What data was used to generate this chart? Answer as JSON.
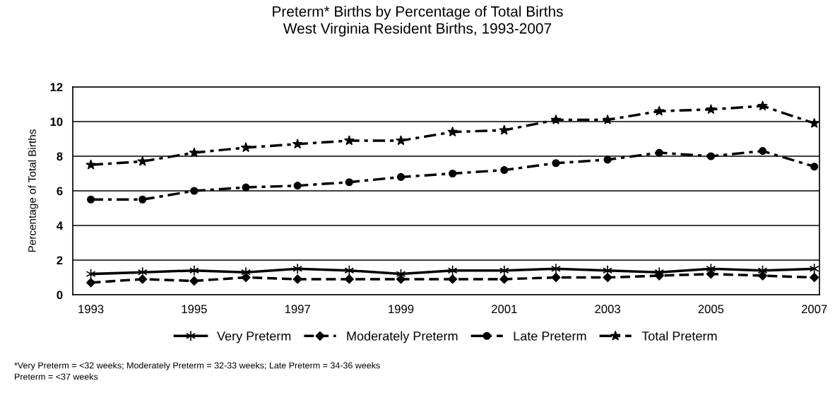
{
  "chart_data": {
    "type": "line",
    "title": "Preterm* Births by Percentage of Total Births",
    "subtitle": "West Virginia Resident Births, 1993-2007",
    "ylabel": "Percentage of Total Births",
    "x": [
      1993,
      1994,
      1995,
      1996,
      1997,
      1998,
      1999,
      2000,
      2001,
      2002,
      2003,
      2004,
      2005,
      2006,
      2007
    ],
    "xlim": [
      1992.65,
      2007.1
    ],
    "xticks": [
      1993,
      1995,
      1997,
      1999,
      2001,
      2003,
      2005,
      2007
    ],
    "ylim": [
      0,
      12
    ],
    "yticks": [
      0,
      2,
      4,
      6,
      8,
      10,
      12
    ],
    "grid": "y",
    "legend": "bottom",
    "series": [
      {
        "name": "Very Preterm",
        "color": "#000000",
        "marker": "cross",
        "line_style": "solid",
        "values": [
          1.2,
          1.3,
          1.4,
          1.3,
          1.5,
          1.4,
          1.2,
          1.4,
          1.4,
          1.5,
          1.4,
          1.3,
          1.5,
          1.4,
          1.5
        ]
      },
      {
        "name": "Moderately Preterm",
        "color": "#000000",
        "marker": "diamond",
        "line_style": "dashed",
        "values": [
          0.7,
          0.9,
          0.8,
          1.0,
          0.9,
          0.9,
          0.9,
          0.9,
          0.9,
          1.0,
          1.0,
          1.1,
          1.2,
          1.1,
          1.0
        ]
      },
      {
        "name": "Late Preterm",
        "color": "#000000",
        "marker": "circle",
        "line_style": "dashdot",
        "values": [
          5.5,
          5.5,
          6.0,
          6.2,
          6.3,
          6.5,
          6.8,
          7.0,
          7.2,
          7.6,
          7.8,
          8.2,
          8.0,
          8.3,
          7.4
        ]
      },
      {
        "name": "Total Preterm",
        "color": "#000000",
        "marker": "star",
        "line_style": "dashdot",
        "values": [
          7.5,
          7.7,
          8.2,
          8.5,
          8.7,
          8.9,
          8.9,
          9.4,
          9.5,
          10.1,
          10.1,
          10.6,
          10.7,
          10.9,
          9.9
        ]
      }
    ],
    "annotations": [
      "*Very Preterm = <32 weeks; Moderately Preterm = 32-33 weeks; Late Preterm = 34-36 weeks",
      "Preterm = <37 weeks"
    ]
  }
}
